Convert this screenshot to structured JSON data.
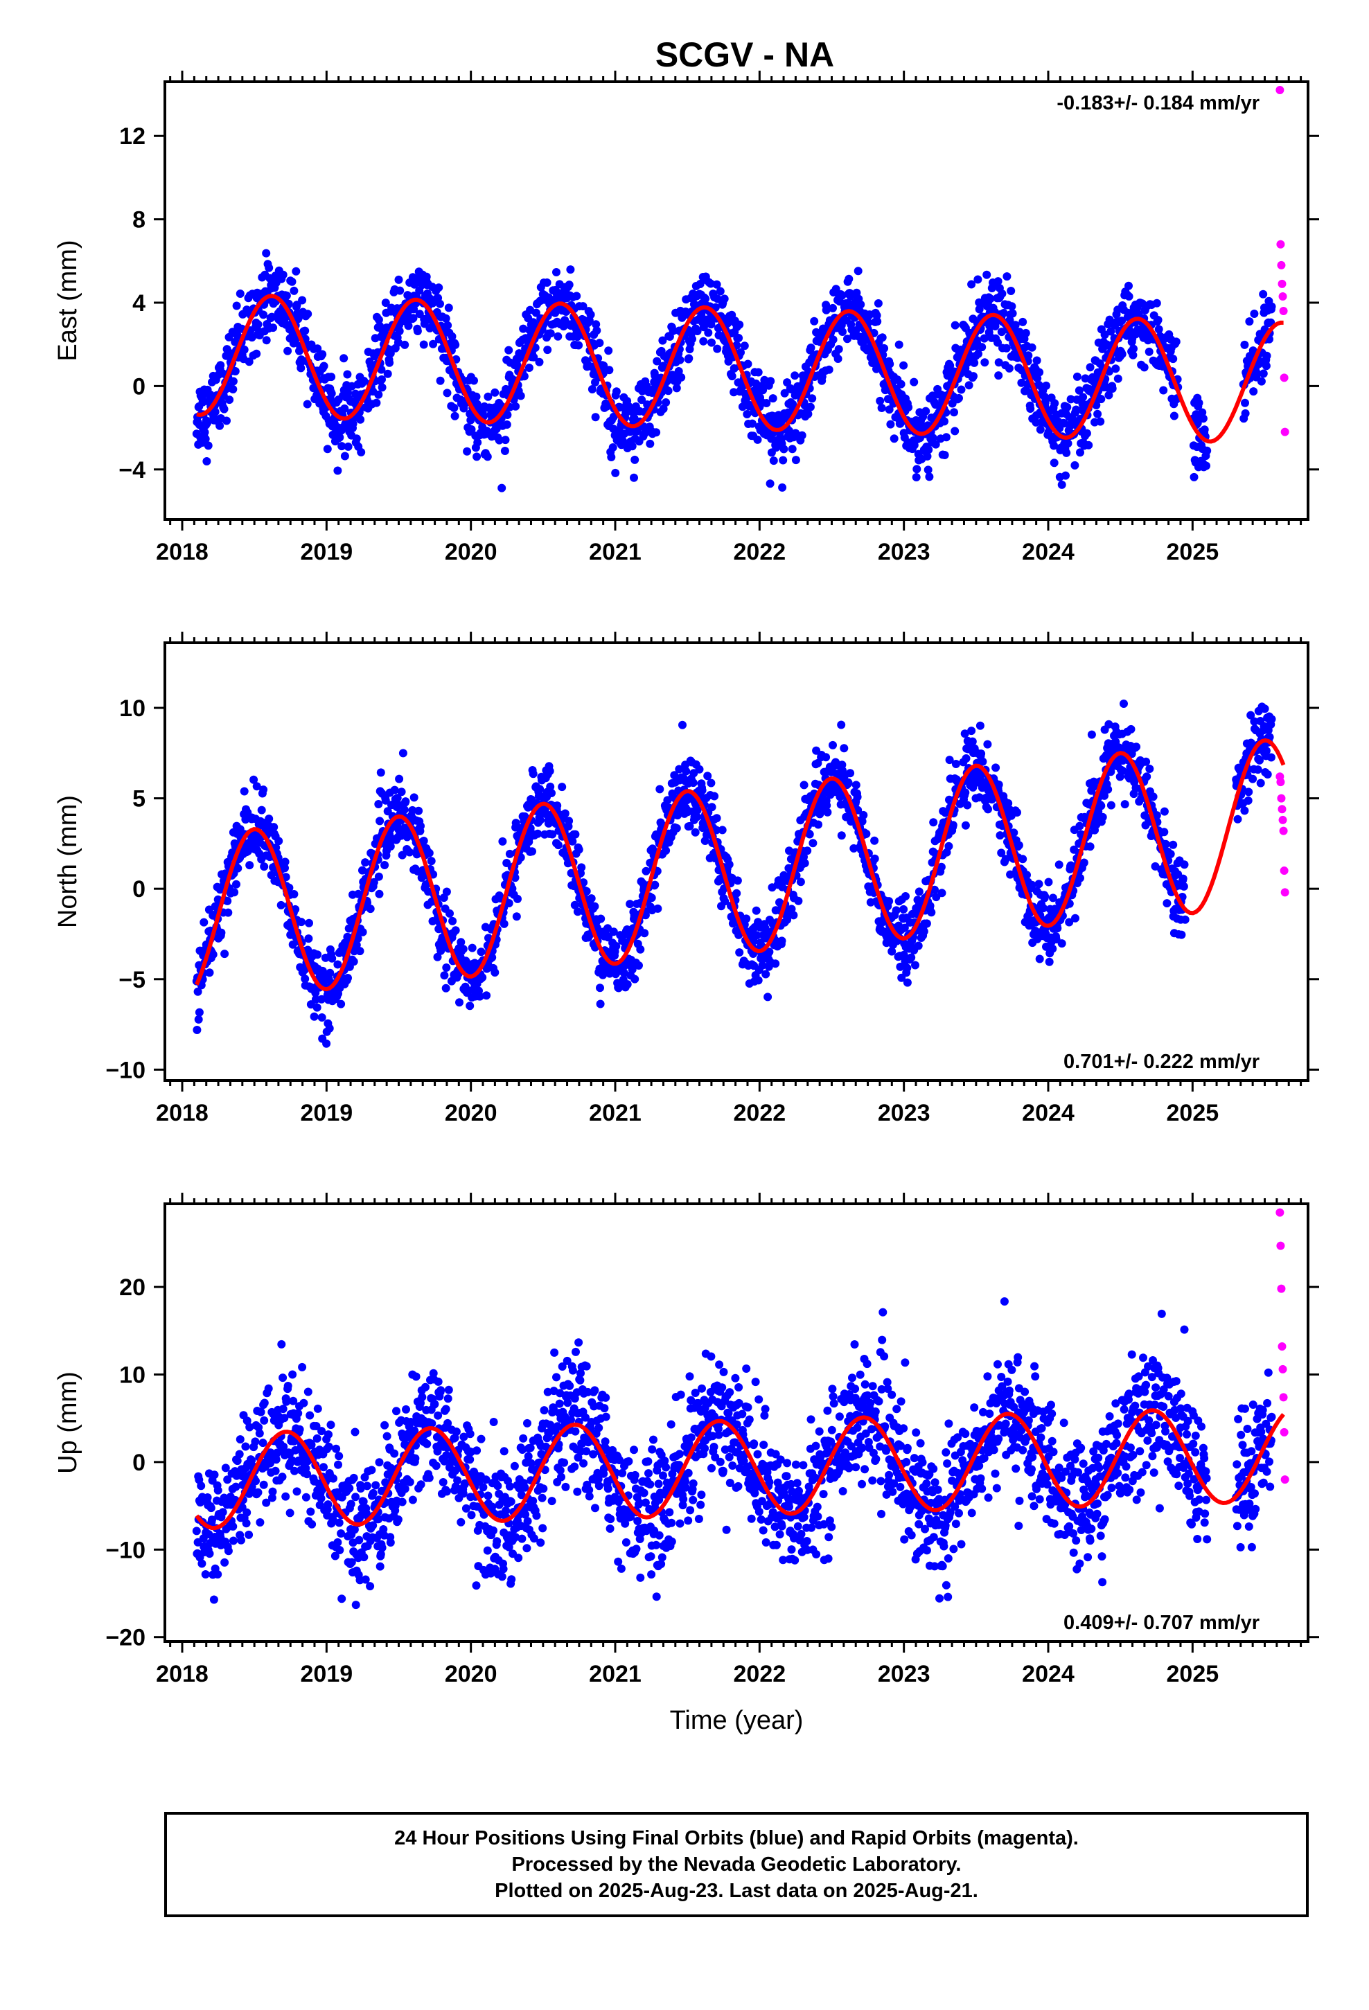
{
  "title": "SCGV - NA",
  "x_axis_label": "Time (year)",
  "footer": {
    "line1": "24 Hour Positions Using Final Orbits (blue) and Rapid Orbits (magenta).",
    "line2": "Processed by the Nevada Geodetic Laboratory.",
    "line3": "Plotted on 2025-Aug-23. Last data on 2025-Aug-21."
  },
  "colors": {
    "final_points": "#0000ff",
    "rapid_points": "#ff00ff",
    "model": "#ff0000",
    "frame": "#000000"
  },
  "chart_data": [
    {
      "type": "scatter",
      "component": "East",
      "ylabel": "East (mm)",
      "xlim": [
        2017.88,
        2025.8
      ],
      "ylim": [
        -6.4,
        14.6
      ],
      "yticks": [
        -4,
        0,
        4,
        8,
        12
      ],
      "xticks": [
        2018,
        2019,
        2020,
        2021,
        2022,
        2023,
        2024,
        2025
      ],
      "rate_text": "-0.183+/- 0.184 mm/yr",
      "rate_position": "top-right",
      "model": {
        "offset": 0.9,
        "trend": -0.183,
        "annual_amp": 2.9,
        "peak_phase": 0.62,
        "start": 2018.1,
        "end": 2025.63,
        "points": 360,
        "ref_year": 2021.5
      },
      "final_points": {
        "start": 2018.1,
        "end": 2025.55,
        "step": 0.0028,
        "noise_sd": 0.9,
        "gaps": [
          [
            2024.9,
            2025.0
          ],
          [
            2025.1,
            2025.35
          ]
        ]
      },
      "rapid_points": {
        "x": [
          2025.605,
          2025.61,
          2025.615,
          2025.62,
          2025.625,
          2025.63,
          2025.635,
          2025.64
        ],
        "y": [
          14.2,
          6.8,
          5.8,
          4.9,
          4.3,
          3.6,
          0.4,
          -2.2
        ]
      }
    },
    {
      "type": "scatter",
      "component": "North",
      "ylabel": "North (mm)",
      "xlim": [
        2017.88,
        2025.8
      ],
      "ylim": [
        -10.6,
        13.6
      ],
      "yticks": [
        -10,
        -5,
        0,
        5,
        10
      ],
      "xticks": [
        2018,
        2019,
        2020,
        2021,
        2022,
        2023,
        2024,
        2025
      ],
      "rate_text": "0.701+/- 0.222 mm/yr",
      "rate_position": "bottom-right",
      "model": {
        "offset": 0.8,
        "trend": 0.701,
        "annual_amp": 4.6,
        "peak_phase": 0.5,
        "start": 2018.1,
        "end": 2025.63,
        "points": 360,
        "ref_year": 2021.5
      },
      "final_points": {
        "start": 2018.1,
        "end": 2025.55,
        "step": 0.0028,
        "noise_sd": 1.0,
        "gaps": [
          [
            2024.95,
            2025.3
          ]
        ]
      },
      "rapid_points": {
        "x": [
          2025.605,
          2025.61,
          2025.615,
          2025.62,
          2025.625,
          2025.63,
          2025.635,
          2025.64
        ],
        "y": [
          6.2,
          5.9,
          5.0,
          4.4,
          3.8,
          3.2,
          1.0,
          -0.2
        ]
      }
    },
    {
      "type": "scatter",
      "component": "Up",
      "ylabel": "Up (mm)",
      "xlim": [
        2017.88,
        2025.8
      ],
      "ylim": [
        -20.5,
        29.5
      ],
      "yticks": [
        -20,
        -10,
        0,
        10,
        20
      ],
      "xticks": [
        2018,
        2019,
        2020,
        2021,
        2022,
        2023,
        2024,
        2025
      ],
      "rate_text": "0.409+/- 0.707 mm/yr",
      "rate_position": "bottom-right",
      "model": {
        "offset": -0.8,
        "trend": 0.409,
        "annual_amp": 5.4,
        "peak_phase": 0.72,
        "start": 2018.1,
        "end": 2025.63,
        "points": 360,
        "ref_year": 2021.5
      },
      "final_points": {
        "start": 2018.1,
        "end": 2025.55,
        "step": 0.0028,
        "noise_sd": 3.6,
        "gaps": [
          [
            2025.1,
            2025.3
          ]
        ]
      },
      "rapid_points": {
        "x": [
          2025.605,
          2025.61,
          2025.615,
          2025.62,
          2025.625,
          2025.63,
          2025.635,
          2025.64
        ],
        "y": [
          28.5,
          24.7,
          19.8,
          13.2,
          10.6,
          7.4,
          3.4,
          -2.0
        ]
      }
    }
  ]
}
